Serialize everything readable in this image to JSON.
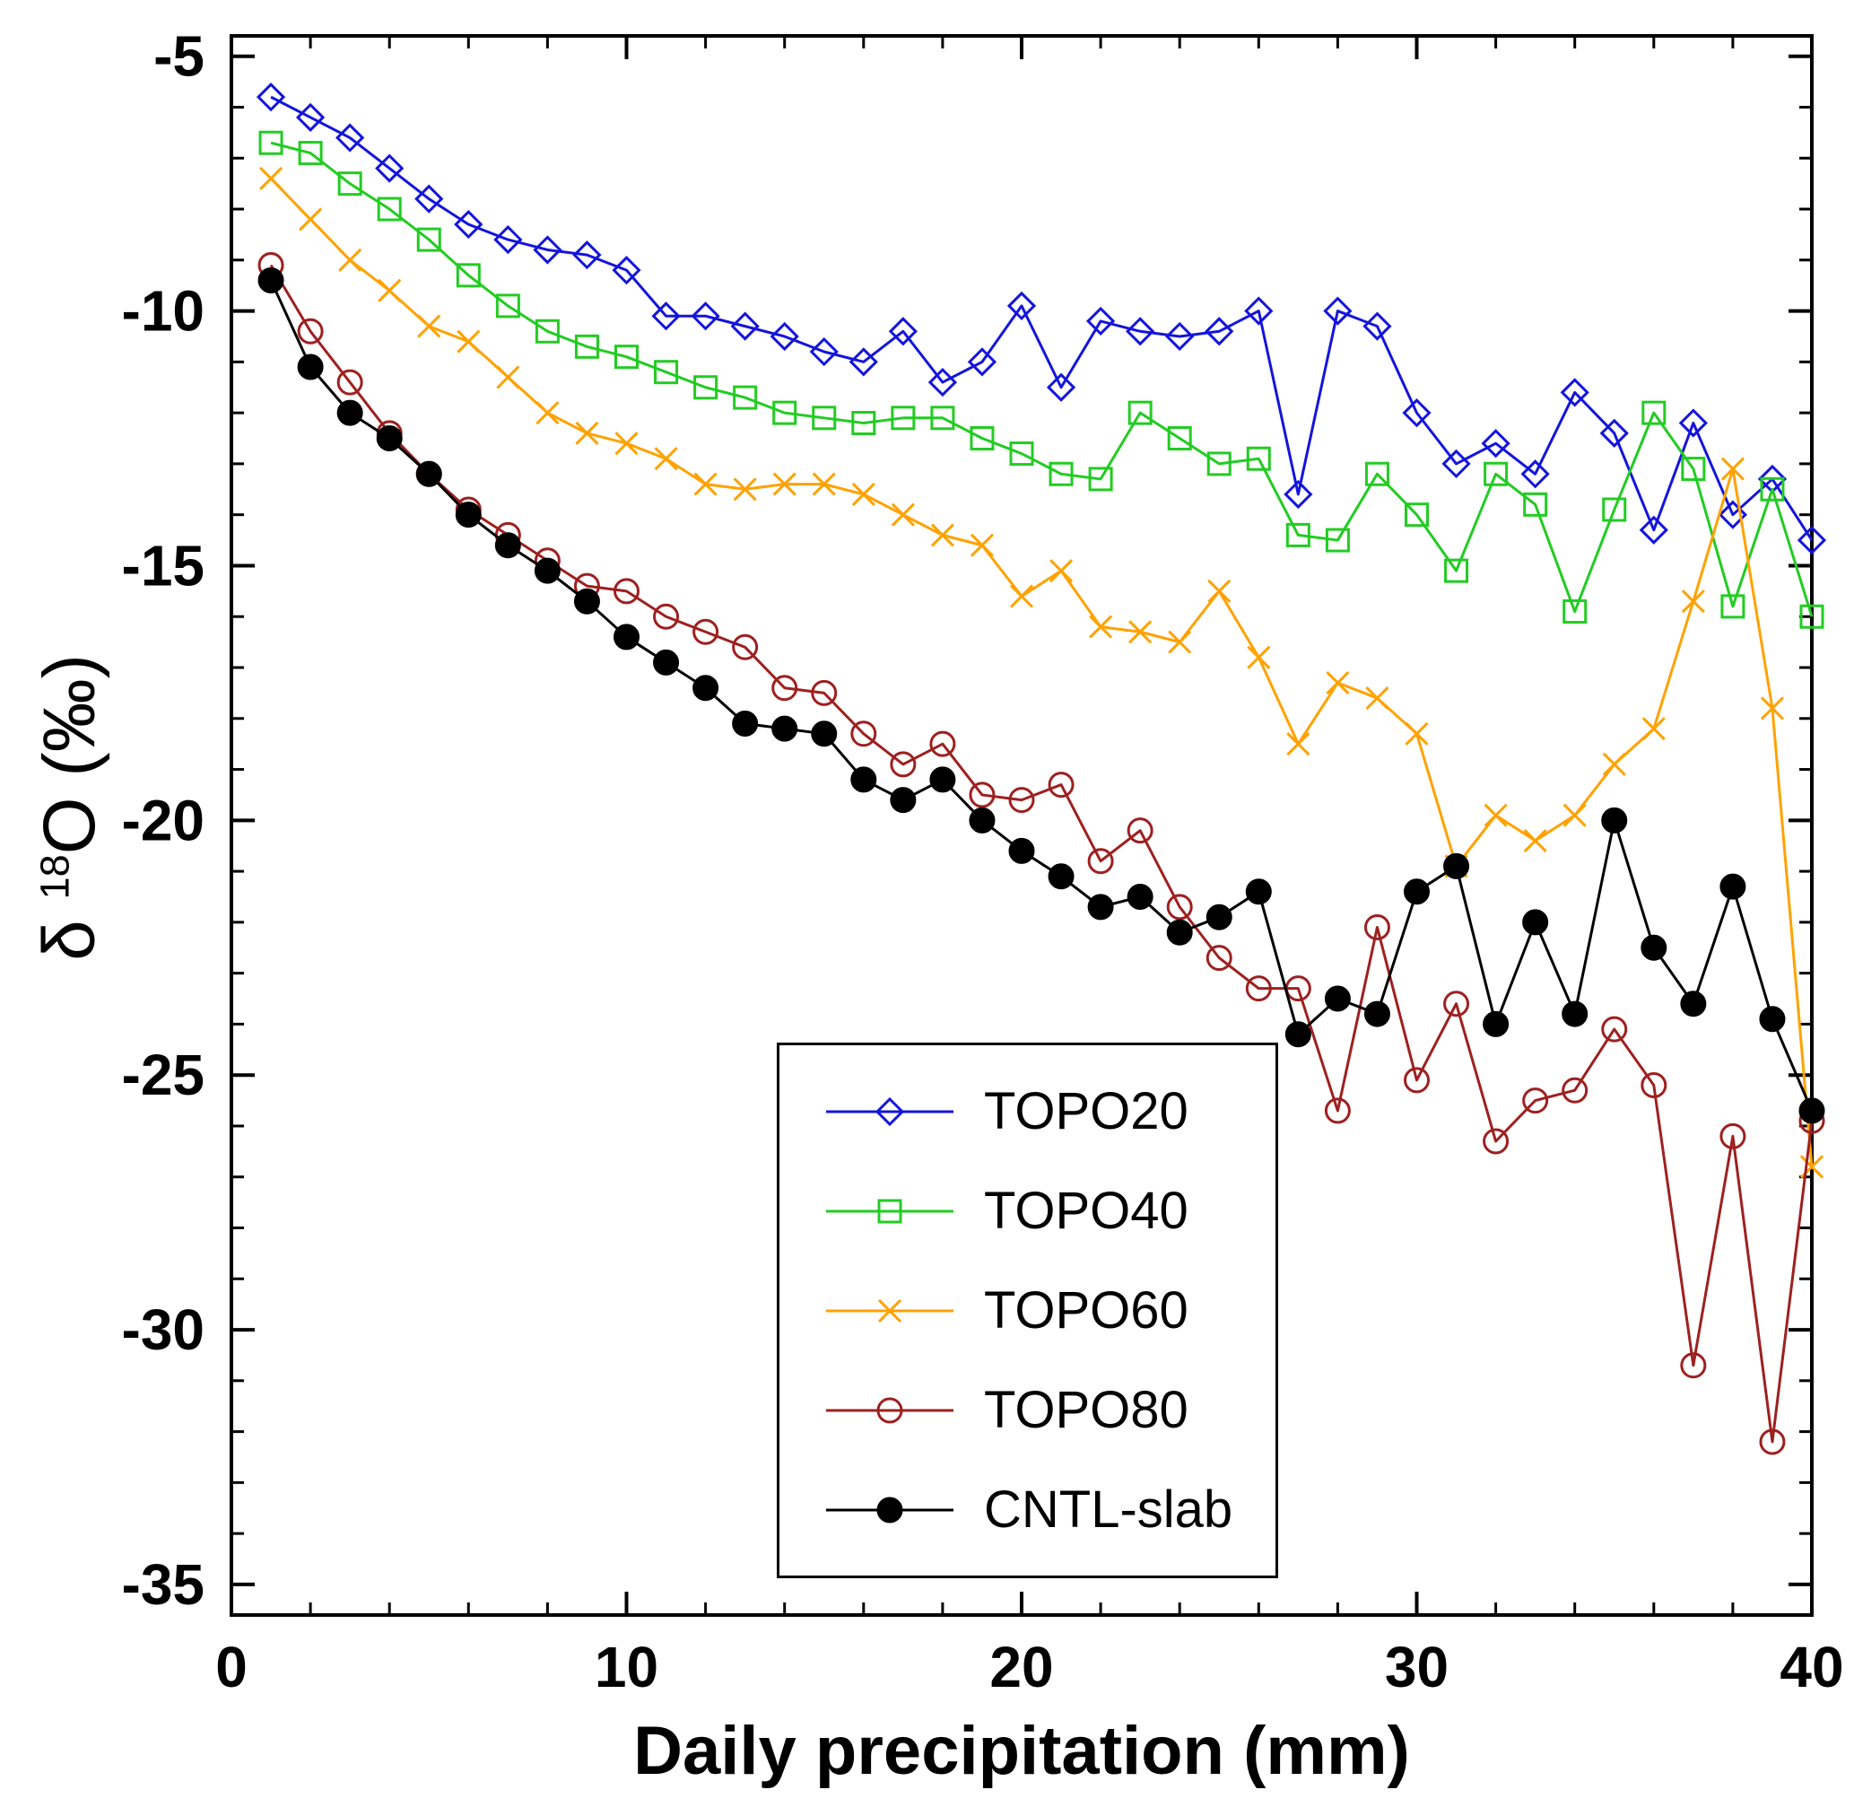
{
  "labels": {
    "y_delta": "δ ",
    "y_sup": "18",
    "y_rest": "O (‰)"
  },
  "chart_data": {
    "type": "line",
    "title": "",
    "xlabel": "Daily precipitation (mm)",
    "ylabel": "δ18O (‰)",
    "xlim": [
      0,
      40
    ],
    "ylim": [
      -35.6,
      -4.6
    ],
    "x_ticks": [
      0,
      10,
      20,
      30,
      40
    ],
    "y_ticks": [
      -5,
      -10,
      -15,
      -20,
      -25,
      -30,
      -35
    ],
    "x_minor_step": 2,
    "y_minor_step": 1,
    "grid": false,
    "legend_position": "inside-bottom-center",
    "x": [
      1,
      2,
      3,
      4,
      5,
      6,
      7,
      8,
      9,
      10,
      11,
      12,
      13,
      14,
      15,
      16,
      17,
      18,
      19,
      20,
      21,
      22,
      23,
      24,
      25,
      26,
      27,
      28,
      29,
      30,
      31,
      32,
      33,
      34,
      35,
      36,
      37,
      38,
      39,
      40
    ],
    "series": [
      {
        "name": "TOPO20",
        "color": "#1414dc",
        "marker": "diamond",
        "values": [
          -5.8,
          -6.2,
          -6.6,
          -7.2,
          -7.8,
          -8.3,
          -8.6,
          -8.8,
          -8.9,
          -9.2,
          -10.1,
          -10.1,
          -10.3,
          -10.5,
          -10.8,
          -11.0,
          -10.4,
          -11.4,
          -11.0,
          -9.9,
          -11.5,
          -10.2,
          -10.4,
          -10.5,
          -10.4,
          -10.0,
          -13.6,
          -10.0,
          -10.3,
          -12.0,
          -13.0,
          -12.6,
          -13.2,
          -11.6,
          -12.4,
          -14.3,
          -12.2,
          -14.0,
          -13.3,
          -14.5
        ]
      },
      {
        "name": "TOPO40",
        "color": "#22cc22",
        "marker": "square",
        "values": [
          -6.7,
          -6.9,
          -7.5,
          -8.0,
          -8.6,
          -9.3,
          -9.9,
          -10.4,
          -10.7,
          -10.9,
          -11.2,
          -11.5,
          -11.7,
          -12.0,
          -12.1,
          -12.2,
          -12.1,
          -12.1,
          -12.5,
          -12.8,
          -13.2,
          -13.3,
          -12.0,
          -12.5,
          -13.0,
          -12.9,
          -14.4,
          -14.5,
          -13.2,
          -14.0,
          -15.1,
          -13.2,
          -13.8,
          -15.9,
          -13.9,
          -12.0,
          -13.1,
          -15.8,
          -13.5,
          -16.0
        ]
      },
      {
        "name": "TOPO60",
        "color": "#ffa200",
        "marker": "x",
        "values": [
          -7.4,
          -8.2,
          -9.0,
          -9.6,
          -10.3,
          -10.6,
          -11.3,
          -12.0,
          -12.4,
          -12.6,
          -12.9,
          -13.4,
          -13.5,
          -13.4,
          -13.4,
          -13.6,
          -14.0,
          -14.4,
          -14.6,
          -15.6,
          -15.1,
          -16.2,
          -16.3,
          -16.5,
          -15.5,
          -16.8,
          -18.5,
          -17.3,
          -17.6,
          -18.3,
          -20.9,
          -19.9,
          -20.4,
          -19.9,
          -18.9,
          -18.2,
          -15.7,
          -13.1,
          -17.8,
          -26.8
        ]
      },
      {
        "name": "TOPO80",
        "color": "#9e2020",
        "marker": "circle-open",
        "values": [
          -9.1,
          -10.4,
          -11.4,
          -12.4,
          -13.2,
          -13.9,
          -14.4,
          -14.9,
          -15.4,
          -15.5,
          -16.0,
          -16.3,
          -16.6,
          -17.4,
          -17.5,
          -18.3,
          -18.9,
          -18.5,
          -19.5,
          -19.6,
          -19.3,
          -20.8,
          -20.2,
          -21.7,
          -22.7,
          -23.3,
          -23.3,
          -25.7,
          -22.1,
          -25.1,
          -23.6,
          -26.3,
          -25.5,
          -25.3,
          -24.1,
          -25.2,
          -30.7,
          -26.2,
          -32.2,
          -25.9
        ]
      },
      {
        "name": "CNTL-slab",
        "color": "#000000",
        "marker": "circle-filled",
        "values": [
          -9.4,
          -11.1,
          -12.0,
          -12.5,
          -13.2,
          -14.0,
          -14.6,
          -15.1,
          -15.7,
          -16.4,
          -16.9,
          -17.4,
          -18.1,
          -18.2,
          -18.3,
          -19.2,
          -19.6,
          -19.2,
          -20.0,
          -20.6,
          -21.1,
          -21.7,
          -21.5,
          -22.2,
          -21.9,
          -21.4,
          -24.2,
          -23.5,
          -23.8,
          -21.4,
          -20.9,
          -24.0,
          -22.0,
          -23.8,
          -20.0,
          -22.5,
          -23.6,
          -21.3,
          -23.9,
          -25.7
        ]
      }
    ]
  }
}
